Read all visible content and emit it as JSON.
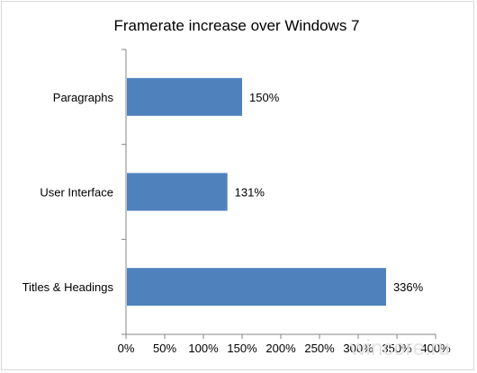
{
  "chart_data": {
    "type": "bar",
    "orientation": "horizontal",
    "title": "Framerate increase over Windows 7",
    "categories": [
      "Paragraphs",
      "User Interface",
      "Titles & Headings"
    ],
    "values": [
      150,
      131,
      336
    ],
    "data_labels": [
      "150%",
      "131%",
      "336%"
    ],
    "xlim": [
      0,
      400
    ],
    "ticks": [
      "0%",
      "50%",
      "100%",
      "150%",
      "200%",
      "250%",
      "300%",
      "350%",
      "400%"
    ],
    "grid": false,
    "legend": "none",
    "bar_color": "#4f81bd"
  },
  "watermark": "wincore.ru"
}
